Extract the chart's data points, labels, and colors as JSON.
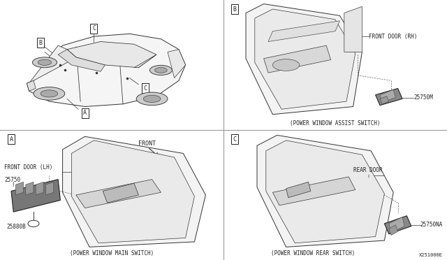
{
  "bg_color": "#ffffff",
  "line_color": "#333333",
  "text_color": "#222222",
  "divider_color": "#999999",
  "label_A": "A",
  "label_B": "B",
  "label_C": "C",
  "caption_bl": "(POWER WINDOW MAIN SWITCH)",
  "caption_tr": "(POWER WINDOW ASSIST SWITCH)",
  "caption_br": "(POWER WINDOW REAR SWITCH)",
  "part_B_label": "FRONT DOOR (RH)",
  "part_B_num": "25750M",
  "part_A_label": "FRONT DOOR (LH)",
  "part_A_num1": "25750",
  "part_A_num2": "25880B",
  "part_C_label": "REAR DOOR",
  "part_C_num": "25750NA",
  "front_text": "FRONT",
  "footer": "X251000E",
  "font": "monospace",
  "lc": "#333333",
  "lw": 0.7
}
